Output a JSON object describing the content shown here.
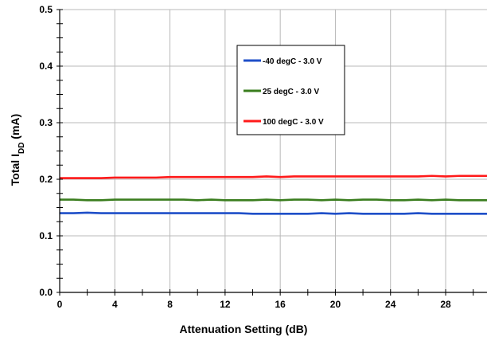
{
  "chart_data": {
    "type": "line",
    "xlabel": "Attenuation Setting (dB)",
    "ylabel": {
      "prefix": "Total I",
      "sub": "DD",
      "suffix": " (mA)"
    },
    "xlim": [
      0,
      31
    ],
    "ylim": [
      0,
      0.5
    ],
    "x_ticks": [
      0,
      4,
      8,
      12,
      16,
      20,
      24,
      28
    ],
    "x_minor_step": 2,
    "y_ticks": [
      0.0,
      0.1,
      0.2,
      0.3,
      0.4,
      0.5
    ],
    "y_tick_labels": [
      "0.0",
      "0.1",
      "0.2",
      "0.3",
      "0.4",
      "0.5"
    ],
    "y_minor_step": 0.025,
    "grid": true,
    "legend_position": "upper-center",
    "x": [
      0,
      1,
      2,
      3,
      4,
      5,
      6,
      7,
      8,
      9,
      10,
      11,
      12,
      13,
      14,
      15,
      16,
      17,
      18,
      19,
      20,
      21,
      22,
      23,
      24,
      25,
      26,
      27,
      28,
      29,
      30,
      31
    ],
    "series": [
      {
        "name": "-40 degC - 3.0 V",
        "color": "#1f4fc8",
        "values": [
          0.14,
          0.14,
          0.141,
          0.14,
          0.14,
          0.14,
          0.14,
          0.14,
          0.14,
          0.14,
          0.14,
          0.14,
          0.14,
          0.14,
          0.139,
          0.139,
          0.139,
          0.139,
          0.139,
          0.14,
          0.139,
          0.14,
          0.139,
          0.139,
          0.139,
          0.139,
          0.14,
          0.139,
          0.139,
          0.139,
          0.139,
          0.139
        ]
      },
      {
        "name": "25 degC - 3.0 V",
        "color": "#3a7d1e",
        "values": [
          0.164,
          0.164,
          0.163,
          0.163,
          0.164,
          0.164,
          0.164,
          0.164,
          0.164,
          0.164,
          0.163,
          0.164,
          0.163,
          0.163,
          0.163,
          0.164,
          0.163,
          0.164,
          0.164,
          0.163,
          0.164,
          0.163,
          0.164,
          0.164,
          0.163,
          0.163,
          0.164,
          0.163,
          0.164,
          0.163,
          0.163,
          0.163
        ]
      },
      {
        "name": "100 degC - 3.0 V",
        "color": "#ff1a1a",
        "values": [
          0.202,
          0.202,
          0.202,
          0.202,
          0.203,
          0.203,
          0.203,
          0.203,
          0.204,
          0.204,
          0.204,
          0.204,
          0.204,
          0.204,
          0.204,
          0.205,
          0.204,
          0.205,
          0.205,
          0.205,
          0.205,
          0.205,
          0.205,
          0.205,
          0.205,
          0.205,
          0.205,
          0.206,
          0.205,
          0.206,
          0.206,
          0.206
        ]
      }
    ]
  }
}
